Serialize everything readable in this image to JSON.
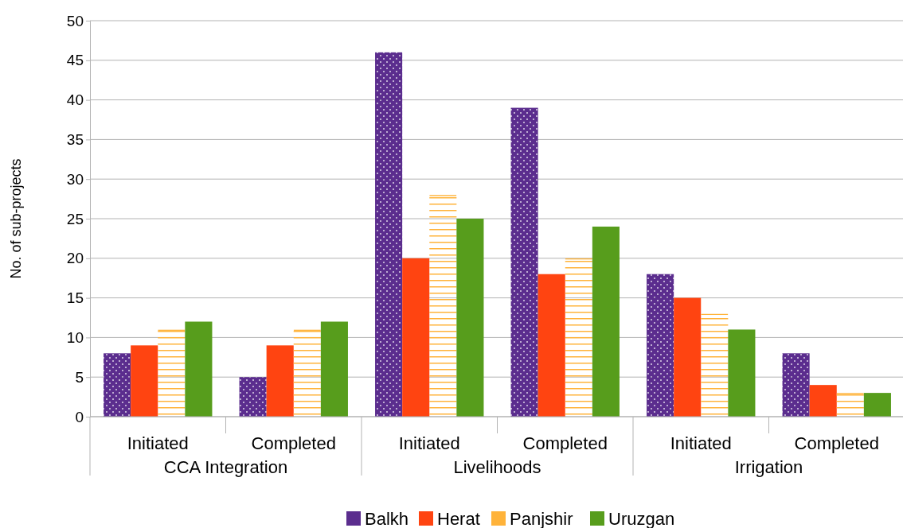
{
  "chart_data": {
    "type": "bar",
    "ylabel": "No. of sub-projects",
    "categories": [
      "Initiated",
      "Completed",
      "Initiated",
      "Completed",
      "Initiated",
      "Completed"
    ],
    "series": [
      {
        "name": "Balkh",
        "color": "#5b2d8e",
        "values": [
          8,
          5,
          46,
          39,
          18,
          8
        ]
      },
      {
        "name": "Herat",
        "color": "#ff4411",
        "values": [
          9,
          9,
          20,
          18,
          15,
          4
        ]
      },
      {
        "name": "Panjshir",
        "color": "#ffb33a",
        "values": [
          11,
          11,
          28,
          20,
          13,
          3
        ]
      },
      {
        "name": "Uruzgan",
        "color": "#579d1c",
        "values": [
          12,
          12,
          25,
          24,
          11,
          3
        ]
      }
    ],
    "annotations": [
      "CCA Integration",
      "Livelihoods",
      "Irrigation"
    ],
    "ylim": [
      0,
      50
    ],
    "yticks": [
      0,
      5,
      10,
      15,
      20,
      25,
      30,
      35,
      40,
      45,
      50
    ],
    "grid": "y",
    "legend": "bottom"
  }
}
